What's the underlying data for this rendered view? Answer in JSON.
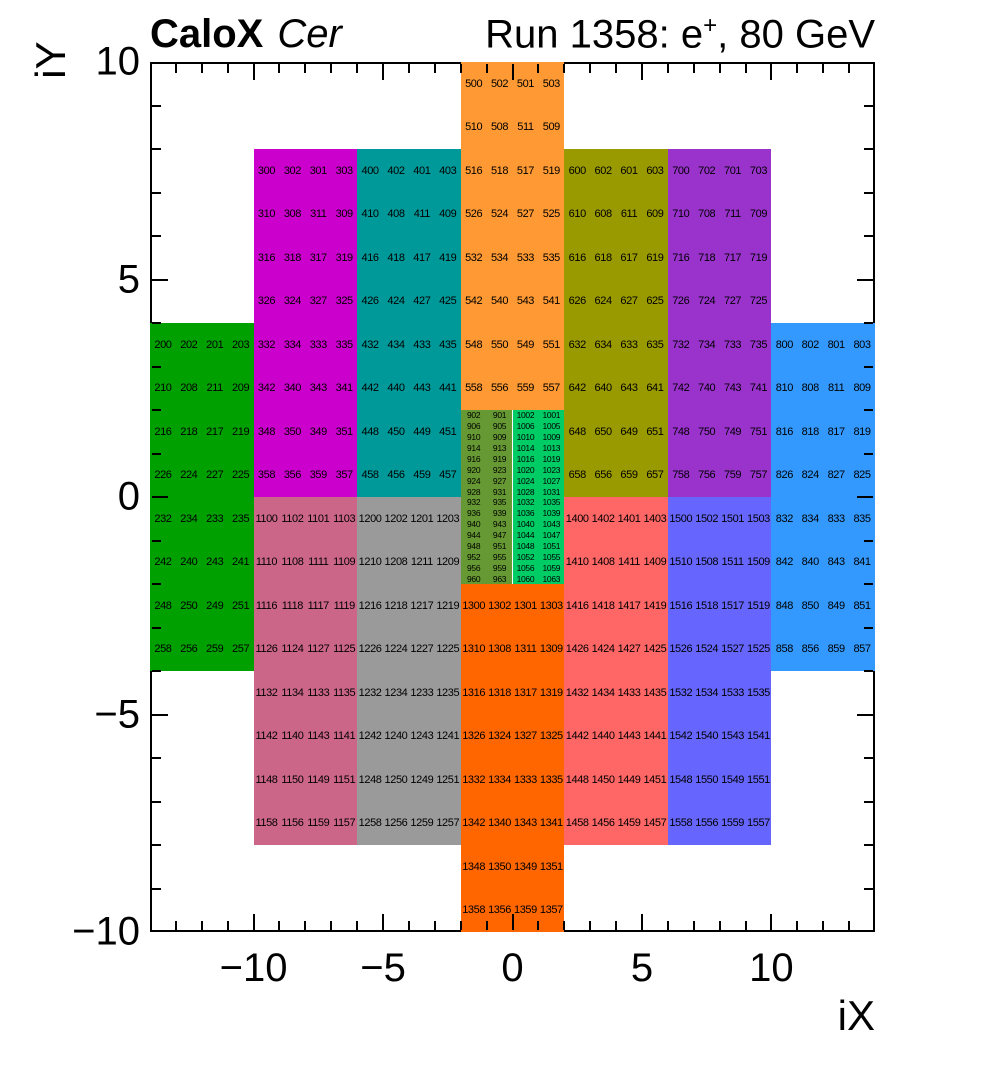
{
  "header": {
    "title_left_bold": "CaloX",
    "title_left_italic": "Cer",
    "title_right_prefix": "Run 1358: e",
    "title_right_sup": "+",
    "title_right_suffix": ", 80 GeV"
  },
  "chart_data": {
    "type": "heatmap",
    "title_left": "CaloX Cer",
    "title_right": "Run 1358: e+, 80 GeV",
    "xlabel": "iX",
    "ylabel": "iY",
    "xlim": [
      -14,
      14
    ],
    "ylim": [
      -10,
      10
    ],
    "x_major_ticks": [
      -10,
      -5,
      0,
      5,
      10
    ],
    "x_tick_labels": [
      "−10",
      "−5",
      "0",
      "5",
      "10"
    ],
    "y_major_ticks": [
      10,
      5,
      0,
      -5,
      -10
    ],
    "y_tick_labels": [
      "10",
      "5",
      "0",
      "−5",
      "−10"
    ],
    "minor_tick_step": 1,
    "grid": false,
    "legend": "none",
    "blocks": [
      {
        "name": "ch200",
        "color": "#00A000",
        "x": [
          -14,
          -10
        ],
        "y": [
          4,
          -4
        ],
        "fine": false,
        "rows": [
          [
            200,
            202,
            201,
            203
          ],
          [
            210,
            208,
            211,
            209
          ],
          [
            216,
            218,
            217,
            219
          ],
          [
            226,
            224,
            227,
            225
          ],
          [
            232,
            234,
            233,
            235
          ],
          [
            242,
            240,
            243,
            241
          ],
          [
            248,
            250,
            249,
            251
          ],
          [
            258,
            256,
            259,
            257
          ]
        ]
      },
      {
        "name": "ch300",
        "color": "#CC00CC",
        "x": [
          -10,
          -6
        ],
        "y": [
          8,
          0
        ],
        "fine": false,
        "rows": [
          [
            300,
            302,
            301,
            303
          ],
          [
            310,
            308,
            311,
            309
          ],
          [
            316,
            318,
            317,
            319
          ],
          [
            326,
            324,
            327,
            325
          ],
          [
            332,
            334,
            333,
            335
          ],
          [
            342,
            340,
            343,
            341
          ],
          [
            348,
            350,
            349,
            351
          ],
          [
            358,
            356,
            359,
            357
          ]
        ]
      },
      {
        "name": "ch400",
        "color": "#009999",
        "x": [
          -6,
          -2
        ],
        "y": [
          8,
          0
        ],
        "fine": false,
        "rows": [
          [
            400,
            402,
            401,
            403
          ],
          [
            410,
            408,
            411,
            409
          ],
          [
            416,
            418,
            417,
            419
          ],
          [
            426,
            424,
            427,
            425
          ],
          [
            432,
            434,
            433,
            435
          ],
          [
            442,
            440,
            443,
            441
          ],
          [
            448,
            450,
            449,
            451
          ],
          [
            458,
            456,
            459,
            457
          ]
        ]
      },
      {
        "name": "ch500",
        "color": "#FF9933",
        "x": [
          -2,
          2
        ],
        "y": [
          10,
          2
        ],
        "fine": false,
        "rows": [
          [
            500,
            502,
            501,
            503
          ],
          [
            510,
            508,
            511,
            509
          ],
          [
            516,
            518,
            517,
            519
          ],
          [
            526,
            524,
            527,
            525
          ],
          [
            532,
            534,
            533,
            535
          ],
          [
            542,
            540,
            543,
            541
          ],
          [
            548,
            550,
            549,
            551
          ],
          [
            558,
            556,
            559,
            557
          ]
        ]
      },
      {
        "name": "ch600",
        "color": "#999900",
        "x": [
          2,
          6
        ],
        "y": [
          8,
          0
        ],
        "fine": false,
        "rows": [
          [
            600,
            602,
            601,
            603
          ],
          [
            610,
            608,
            611,
            609
          ],
          [
            616,
            618,
            617,
            619
          ],
          [
            626,
            624,
            627,
            625
          ],
          [
            632,
            634,
            633,
            635
          ],
          [
            642,
            640,
            643,
            641
          ],
          [
            648,
            650,
            649,
            651
          ],
          [
            658,
            656,
            659,
            657
          ]
        ]
      },
      {
        "name": "ch700",
        "color": "#9933CC",
        "x": [
          6,
          10
        ],
        "y": [
          8,
          0
        ],
        "fine": false,
        "rows": [
          [
            700,
            702,
            701,
            703
          ],
          [
            710,
            708,
            711,
            709
          ],
          [
            716,
            718,
            717,
            719
          ],
          [
            726,
            724,
            727,
            725
          ],
          [
            732,
            734,
            733,
            735
          ],
          [
            742,
            740,
            743,
            741
          ],
          [
            748,
            750,
            749,
            751
          ],
          [
            758,
            756,
            759,
            757
          ]
        ]
      },
      {
        "name": "ch800",
        "color": "#3399FF",
        "x": [
          10,
          14
        ],
        "y": [
          4,
          -4
        ],
        "fine": false,
        "rows": [
          [
            800,
            802,
            801,
            803
          ],
          [
            810,
            808,
            811,
            809
          ],
          [
            816,
            818,
            817,
            819
          ],
          [
            826,
            824,
            827,
            825
          ],
          [
            832,
            834,
            833,
            835
          ],
          [
            842,
            840,
            843,
            841
          ],
          [
            848,
            850,
            849,
            851
          ],
          [
            858,
            856,
            859,
            857
          ]
        ]
      },
      {
        "name": "ch900",
        "color": "#669933",
        "x": [
          -2,
          0
        ],
        "y": [
          2,
          -2
        ],
        "fine": true,
        "rows": [
          [
            902,
            901
          ],
          [
            906,
            905
          ],
          [
            910,
            909
          ],
          [
            914,
            913
          ],
          [
            916,
            919
          ],
          [
            920,
            923
          ],
          [
            924,
            927
          ],
          [
            928,
            931
          ],
          [
            932,
            935
          ],
          [
            936,
            939
          ],
          [
            940,
            943
          ],
          [
            944,
            947
          ],
          [
            948,
            951
          ],
          [
            952,
            955
          ],
          [
            956,
            959
          ],
          [
            960,
            963
          ]
        ]
      },
      {
        "name": "ch1000",
        "color": "#00CC66",
        "x": [
          0,
          2
        ],
        "y": [
          2,
          -2
        ],
        "fine": true,
        "rows": [
          [
            1002,
            1001
          ],
          [
            1006,
            1005
          ],
          [
            1010,
            1009
          ],
          [
            1014,
            1013
          ],
          [
            1016,
            1019
          ],
          [
            1020,
            1023
          ],
          [
            1024,
            1027
          ],
          [
            1028,
            1031
          ],
          [
            1032,
            1035
          ],
          [
            1036,
            1039
          ],
          [
            1040,
            1043
          ],
          [
            1044,
            1047
          ],
          [
            1048,
            1051
          ],
          [
            1052,
            1055
          ],
          [
            1056,
            1059
          ],
          [
            1060,
            1063
          ]
        ]
      },
      {
        "name": "ch1100",
        "color": "#CC6688",
        "x": [
          -10,
          -6
        ],
        "y": [
          0,
          -8
        ],
        "fine": false,
        "rows": [
          [
            1100,
            1102,
            1101,
            1103
          ],
          [
            1110,
            1108,
            1111,
            1109
          ],
          [
            1116,
            1118,
            1117,
            1119
          ],
          [
            1126,
            1124,
            1127,
            1125
          ],
          [
            1132,
            1134,
            1133,
            1135
          ],
          [
            1142,
            1140,
            1143,
            1141
          ],
          [
            1148,
            1150,
            1149,
            1151
          ],
          [
            1158,
            1156,
            1159,
            1157
          ]
        ]
      },
      {
        "name": "ch1200",
        "color": "#9A9A9A",
        "x": [
          -6,
          -2
        ],
        "y": [
          0,
          -8
        ],
        "fine": false,
        "rows": [
          [
            1200,
            1202,
            1201,
            1203
          ],
          [
            1210,
            1208,
            1211,
            1209
          ],
          [
            1216,
            1218,
            1217,
            1219
          ],
          [
            1226,
            1224,
            1227,
            1225
          ],
          [
            1232,
            1234,
            1233,
            1235
          ],
          [
            1242,
            1240,
            1243,
            1241
          ],
          [
            1248,
            1250,
            1249,
            1251
          ],
          [
            1258,
            1256,
            1259,
            1257
          ]
        ]
      },
      {
        "name": "ch1300",
        "color": "#FF6600",
        "x": [
          -2,
          2
        ],
        "y": [
          -2,
          -10
        ],
        "fine": false,
        "rows": [
          [
            1300,
            1302,
            1301,
            1303
          ],
          [
            1310,
            1308,
            1311,
            1309
          ],
          [
            1316,
            1318,
            1317,
            1319
          ],
          [
            1326,
            1324,
            1327,
            1325
          ],
          [
            1332,
            1334,
            1333,
            1335
          ],
          [
            1342,
            1340,
            1343,
            1341
          ],
          [
            1348,
            1350,
            1349,
            1351
          ],
          [
            1358,
            1356,
            1359,
            1357
          ]
        ]
      },
      {
        "name": "ch1400",
        "color": "#FF6666",
        "x": [
          2,
          6
        ],
        "y": [
          0,
          -8
        ],
        "fine": false,
        "rows": [
          [
            1400,
            1402,
            1401,
            1403
          ],
          [
            1410,
            1408,
            1411,
            1409
          ],
          [
            1416,
            1418,
            1417,
            1419
          ],
          [
            1426,
            1424,
            1427,
            1425
          ],
          [
            1432,
            1434,
            1433,
            1435
          ],
          [
            1442,
            1440,
            1443,
            1441
          ],
          [
            1448,
            1450,
            1449,
            1451
          ],
          [
            1458,
            1456,
            1459,
            1457
          ]
        ]
      },
      {
        "name": "ch1500",
        "color": "#6666FF",
        "x": [
          6,
          10
        ],
        "y": [
          0,
          -8
        ],
        "fine": false,
        "rows": [
          [
            1500,
            1502,
            1501,
            1503
          ],
          [
            1510,
            1508,
            1511,
            1509
          ],
          [
            1516,
            1518,
            1517,
            1519
          ],
          [
            1526,
            1524,
            1527,
            1525
          ],
          [
            1532,
            1534,
            1533,
            1535
          ],
          [
            1542,
            1540,
            1543,
            1541
          ],
          [
            1548,
            1550,
            1549,
            1551
          ],
          [
            1558,
            1556,
            1559,
            1557
          ]
        ]
      }
    ]
  }
}
